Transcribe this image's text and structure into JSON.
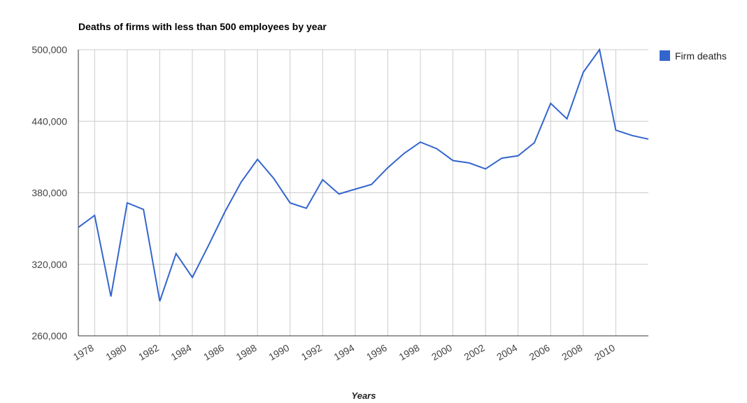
{
  "chart_data": {
    "type": "line",
    "title": "Deaths of firms with less than 500 employees by year",
    "x_label": "Years",
    "x": [
      1977,
      1978,
      1979,
      1980,
      1981,
      1982,
      1983,
      1984,
      1985,
      1986,
      1987,
      1988,
      1989,
      1990,
      1991,
      1992,
      1993,
      1994,
      1995,
      1996,
      1997,
      1998,
      1999,
      2000,
      2001,
      2002,
      2003,
      2004,
      2005,
      2006,
      2007,
      2008,
      2009,
      2010,
      2011,
      2012
    ],
    "series": [
      {
        "name": "Firm deaths",
        "color": "#3366cc",
        "values": [
          351000,
          361000,
          293000,
          371500,
          366000,
          289000,
          329000,
          309000,
          336000,
          364000,
          389000,
          408000,
          392000,
          371500,
          367000,
          391000,
          379000,
          383000,
          387000,
          401000,
          413000,
          422500,
          417000,
          407000,
          405000,
          400000,
          409000,
          411000,
          422000,
          455000,
          442000,
          481000,
          500000,
          432500,
          428000,
          425000
        ]
      }
    ],
    "xlim": [
      1977,
      2012
    ],
    "xticks": [
      1978,
      1980,
      1982,
      1984,
      1986,
      1988,
      1990,
      1992,
      1994,
      1996,
      1998,
      2000,
      2002,
      2004,
      2006,
      2008,
      2010
    ],
    "ylim": [
      260000,
      500000
    ],
    "yticks": [
      {
        "value": 260000,
        "label": "260,000"
      },
      {
        "value": 320000,
        "label": "320,000"
      },
      {
        "value": 380000,
        "label": "380,000"
      },
      {
        "value": 440000,
        "label": "440,000"
      },
      {
        "value": 500000,
        "label": "500,000"
      }
    ],
    "grid": true,
    "legend": "right"
  }
}
